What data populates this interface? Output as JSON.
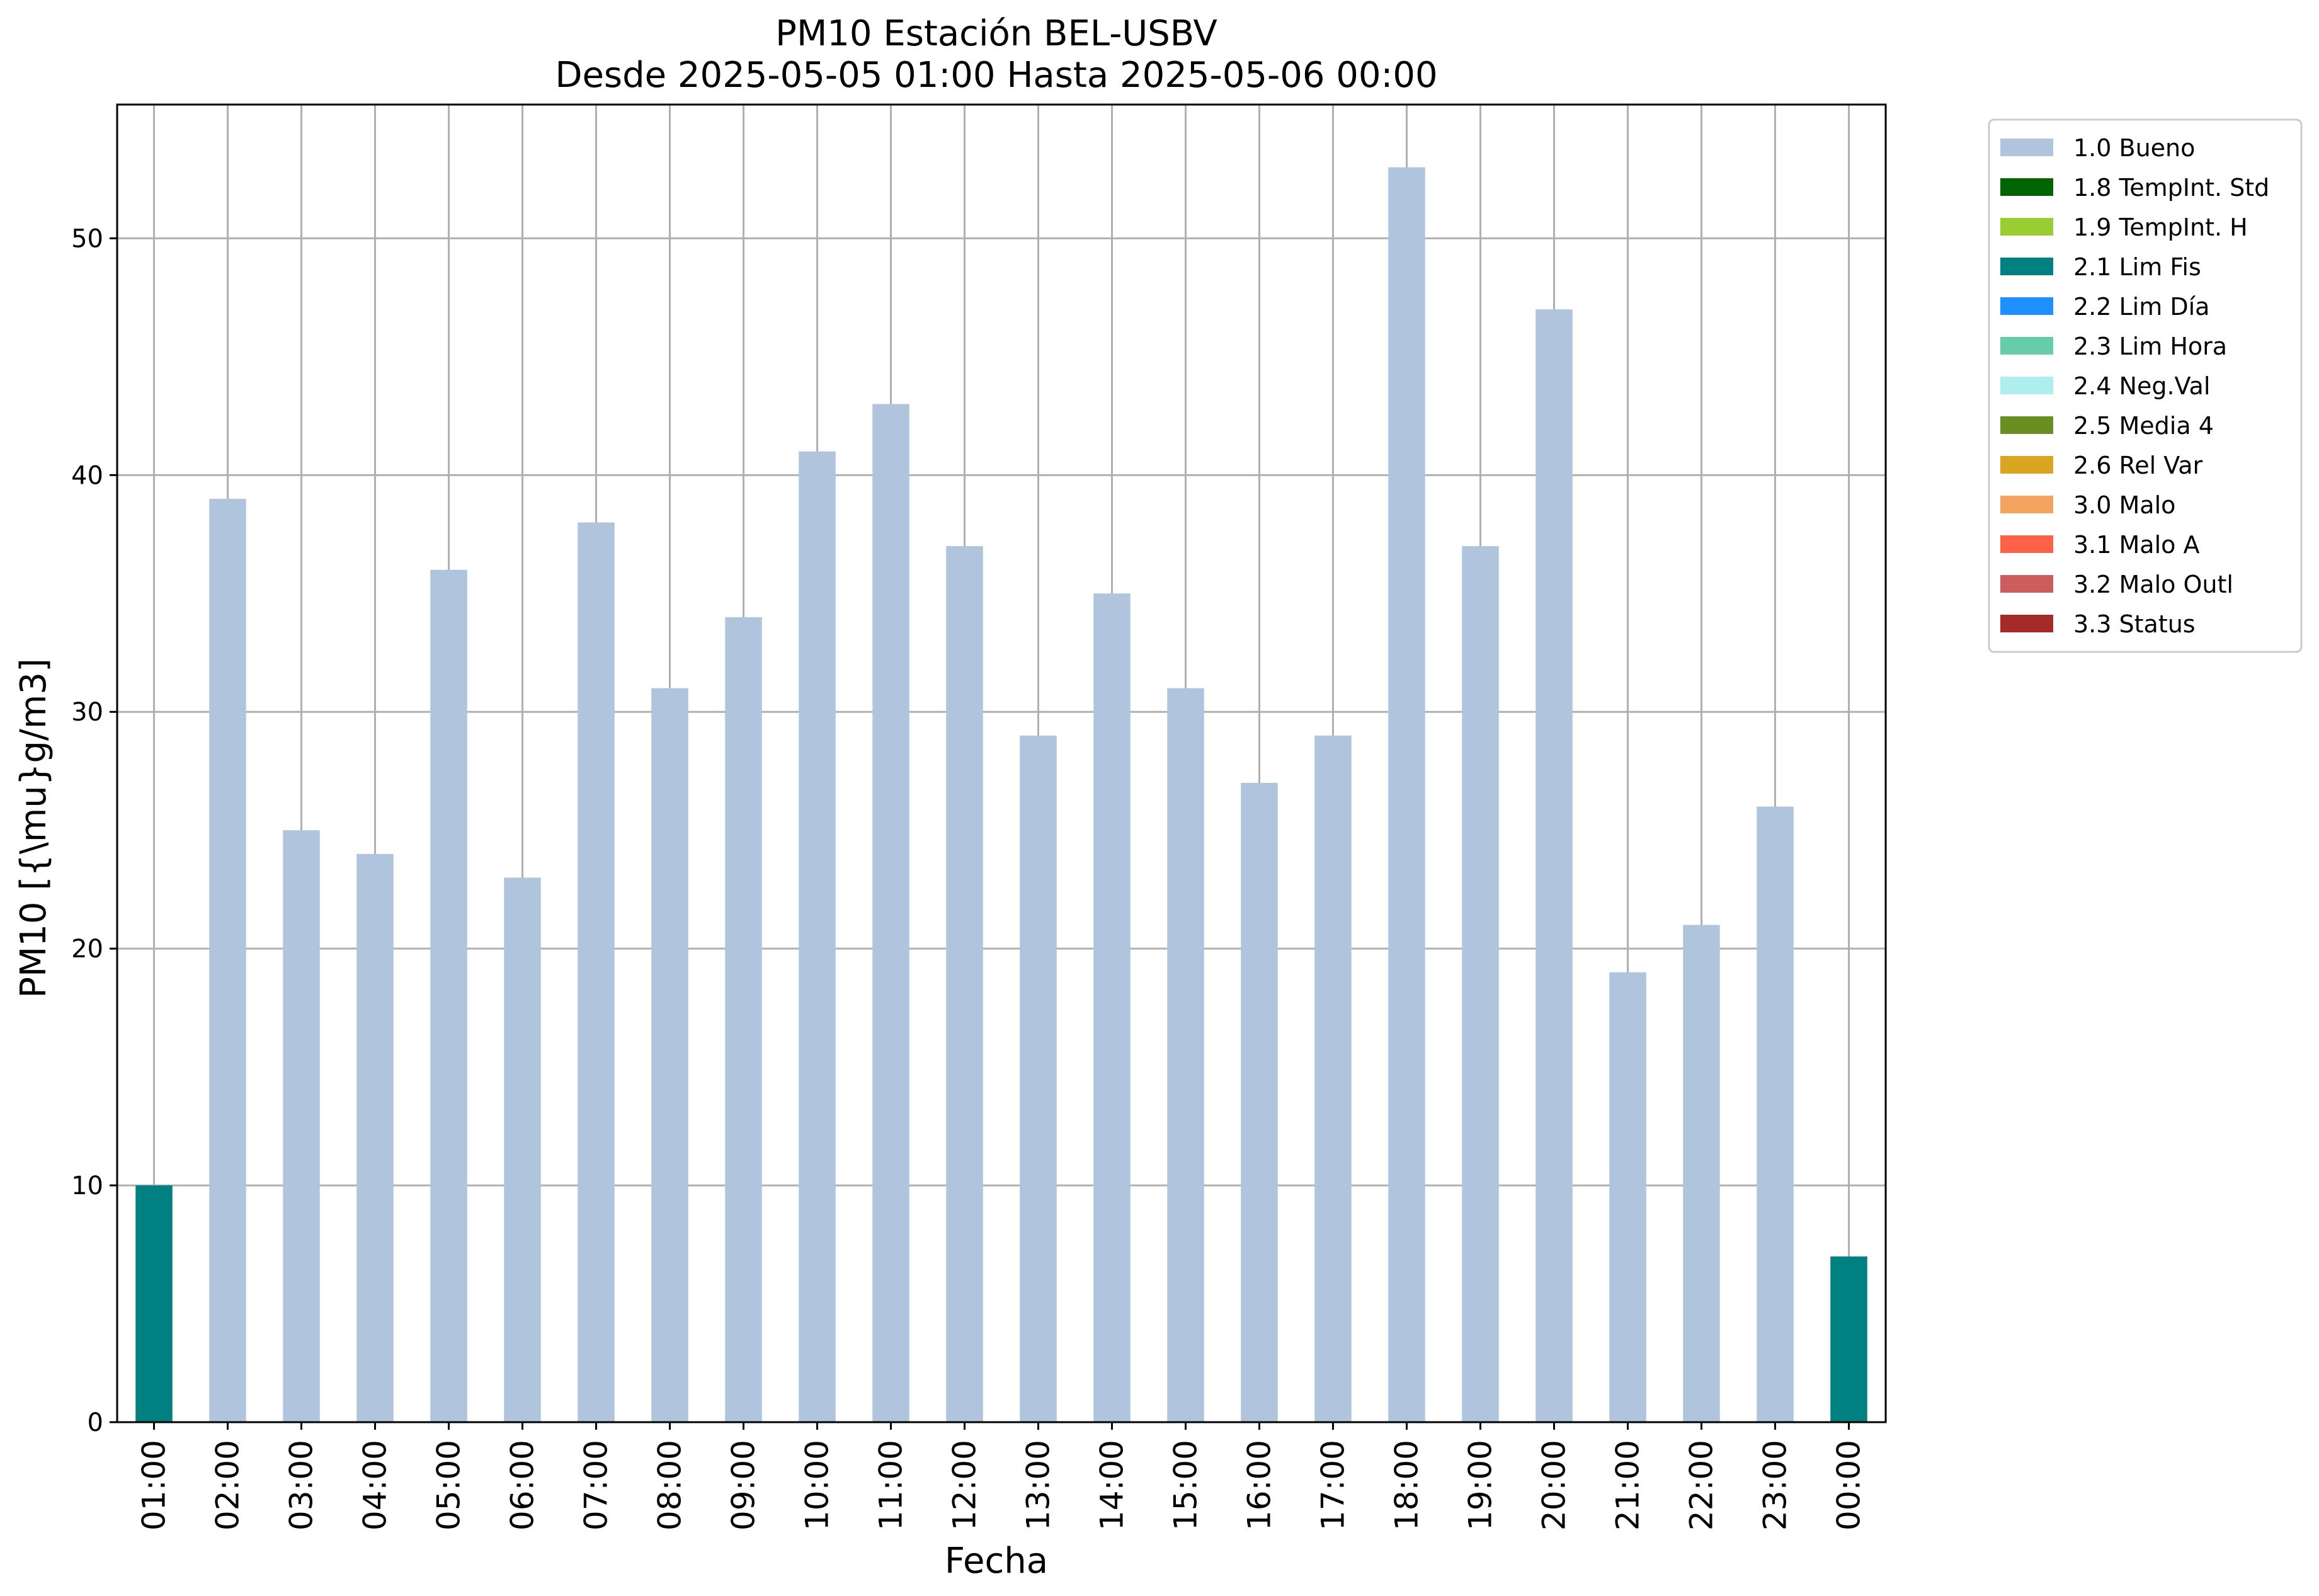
{
  "chart_data": {
    "type": "bar",
    "title": "PM10 Estación BEL-USBV",
    "subtitle": "Desde 2025-05-05 01:00 Hasta 2025-05-06 00:00",
    "xlabel": "Fecha",
    "ylabel": "PM10 [{\\mu}g/m3]",
    "ylim": [
      0,
      55.65
    ],
    "yticks": [
      0,
      10,
      20,
      30,
      40,
      50
    ],
    "grid": true,
    "legend_position": "outside-top-right",
    "categories": [
      "01:00",
      "02:00",
      "03:00",
      "04:00",
      "05:00",
      "06:00",
      "07:00",
      "08:00",
      "09:00",
      "10:00",
      "11:00",
      "12:00",
      "13:00",
      "14:00",
      "15:00",
      "16:00",
      "17:00",
      "18:00",
      "19:00",
      "20:00",
      "21:00",
      "22:00",
      "23:00",
      "00:00"
    ],
    "values": [
      10,
      39,
      25,
      24,
      36,
      23,
      38,
      31,
      34,
      41,
      43,
      37,
      29,
      35,
      31,
      27,
      29,
      53,
      37,
      47,
      19,
      21,
      26,
      7
    ],
    "flags": [
      "2.1 Lim Fis",
      "1.0 Bueno",
      "1.0 Bueno",
      "1.0 Bueno",
      "1.0 Bueno",
      "1.0 Bueno",
      "1.0 Bueno",
      "1.0 Bueno",
      "1.0 Bueno",
      "1.0 Bueno",
      "1.0 Bueno",
      "1.0 Bueno",
      "1.0 Bueno",
      "1.0 Bueno",
      "1.0 Bueno",
      "1.0 Bueno",
      "1.0 Bueno",
      "1.0 Bueno",
      "1.0 Bueno",
      "1.0 Bueno",
      "1.0 Bueno",
      "1.0 Bueno",
      "1.0 Bueno",
      "2.1 Lim Fis"
    ],
    "legend": [
      {
        "label": "1.0 Bueno",
        "color": "#b0c4de"
      },
      {
        "label": "1.8 TempInt. Std",
        "color": "#006400"
      },
      {
        "label": "1.9 TempInt. H",
        "color": "#9acd32"
      },
      {
        "label": "2.1 Lim Fis",
        "color": "#008080"
      },
      {
        "label": "2.2 Lim Día",
        "color": "#1e90ff"
      },
      {
        "label": "2.3 Lim Hora",
        "color": "#66cdaa"
      },
      {
        "label": "2.4 Neg.Val",
        "color": "#afeeee"
      },
      {
        "label": "2.5 Media 4",
        "color": "#6b8e23"
      },
      {
        "label": "2.6 Rel Var",
        "color": "#daa520"
      },
      {
        "label": "3.0 Malo",
        "color": "#f4a460"
      },
      {
        "label": "3.1 Malo A",
        "color": "#ff6347"
      },
      {
        "label": "3.2 Malo Outl",
        "color": "#cd5c5c"
      },
      {
        "label": "3.3 Status",
        "color": "#a52a2a"
      }
    ]
  }
}
